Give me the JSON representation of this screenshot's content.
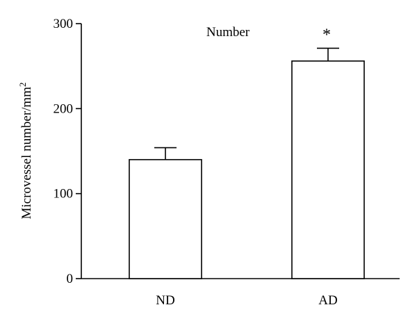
{
  "chart_data": {
    "type": "bar",
    "title": "Number",
    "ylabel_main": "Microvessel number/mm",
    "ylabel_sup": "2",
    "xlabel": "",
    "categories": [
      "ND",
      "AD"
    ],
    "values": [
      140,
      256
    ],
    "errors": [
      14,
      15
    ],
    "significance": [
      "",
      "*"
    ],
    "ylim": [
      0,
      300
    ],
    "yticks": [
      0,
      100,
      200,
      300
    ],
    "ytick_labels": [
      "0",
      "100",
      "200",
      "300"
    ],
    "grid": false,
    "bar_fill": "#ffffff",
    "line_color": "#000000"
  }
}
